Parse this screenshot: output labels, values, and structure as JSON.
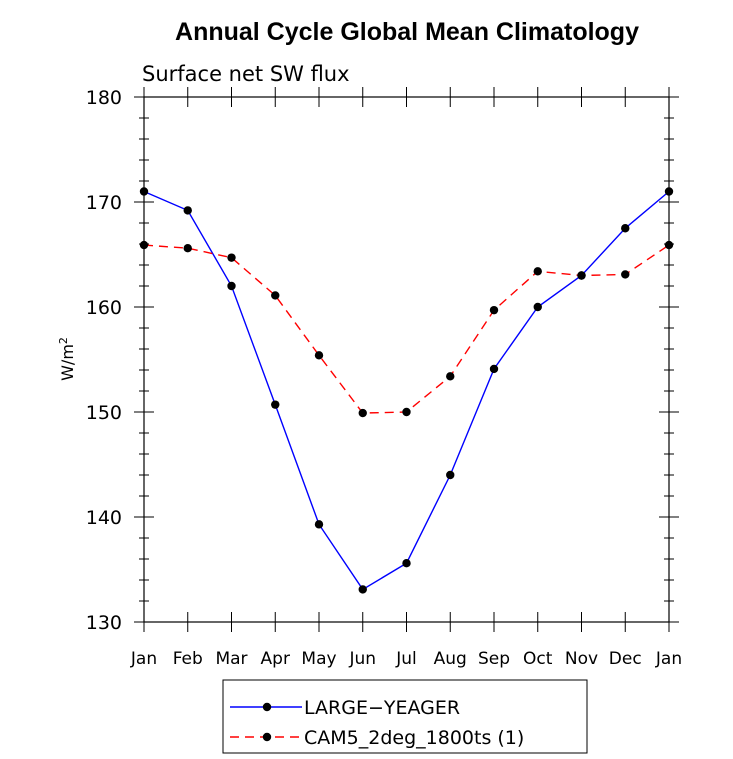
{
  "chart_data": {
    "type": "line",
    "title": "Annual Cycle Global Mean Climatology",
    "subtitle": "Surface net SW flux",
    "ylabel": "W/m",
    "ylabel_sup": "2",
    "xlabel": "",
    "categories": [
      "Jan",
      "Feb",
      "Mar",
      "Apr",
      "May",
      "Jun",
      "Jul",
      "Aug",
      "Sep",
      "Oct",
      "Nov",
      "Dec",
      "Jan"
    ],
    "ylim": [
      130,
      180
    ],
    "yticks": [
      130,
      140,
      150,
      160,
      170,
      180
    ],
    "grid": false,
    "legend_position": "bottom",
    "series": [
      {
        "name": "LARGE−YEAGER",
        "color": "#0000ff",
        "line_style": "solid",
        "marker": "filled-circle",
        "values": [
          171.0,
          169.2,
          162.0,
          150.7,
          139.3,
          133.1,
          135.6,
          144.0,
          154.1,
          160.0,
          163.0,
          167.5,
          171.0
        ]
      },
      {
        "name": "CAM5_2deg_1800ts (1)",
        "color": "#ff0000",
        "line_style": "dashed",
        "marker": "filled-circle",
        "values": [
          165.9,
          165.6,
          164.7,
          161.1,
          155.4,
          149.9,
          150.0,
          153.4,
          159.7,
          163.4,
          163.0,
          163.1,
          165.9
        ]
      }
    ]
  }
}
